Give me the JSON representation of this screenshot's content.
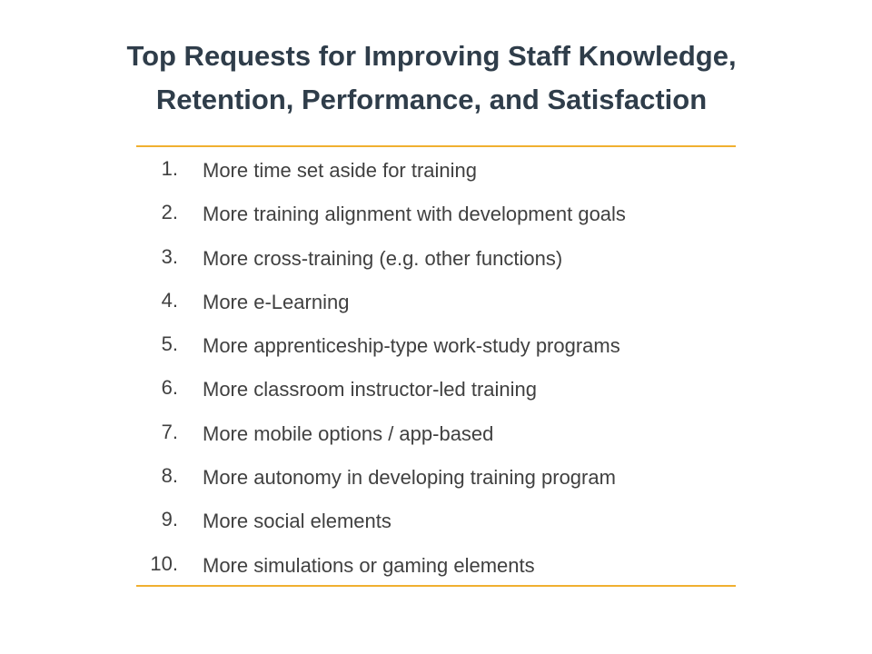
{
  "slide": {
    "title_line1": "Top Requests for Improving Staff Knowledge,",
    "title_line2": "Retention, Performance, and Satisfaction",
    "colors": {
      "title": "#2f3d4a",
      "text": "#404040",
      "rule": "#f0b030"
    },
    "items": [
      {
        "number": "1.",
        "text": "More time set aside for training"
      },
      {
        "number": "2.",
        "text": "More training alignment with development goals"
      },
      {
        "number": "3.",
        "text": "More cross-training (e.g. other functions)"
      },
      {
        "number": "4.",
        "text": "More e-Learning"
      },
      {
        "number": "5.",
        "text": "More apprenticeship-type work-study programs"
      },
      {
        "number": "6.",
        "text": "More classroom instructor-led training"
      },
      {
        "number": "7.",
        "text": "More mobile options / app-based"
      },
      {
        "number": "8.",
        "text": "More autonomy in developing training program"
      },
      {
        "number": "9.",
        "text": "More social elements"
      },
      {
        "number": "10.",
        "text": "More simulations or gaming elements"
      }
    ]
  }
}
